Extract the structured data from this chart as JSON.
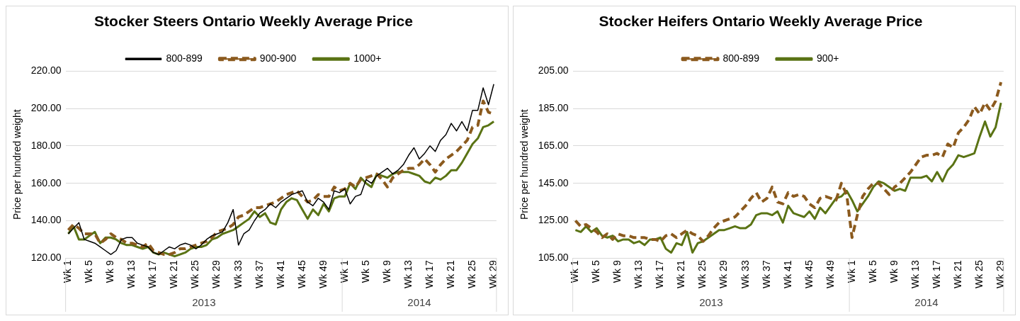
{
  "chart_data": [
    {
      "type": "line",
      "title": "Stocker Steers Ontario Weekly Average Price",
      "ylabel": "Price per hundred weight",
      "categories": [
        "Wk 1",
        null,
        null,
        null,
        "Wk 5",
        null,
        null,
        null,
        "Wk 9",
        null,
        null,
        null,
        "Wk 13",
        null,
        null,
        null,
        "Wk 17",
        null,
        null,
        null,
        "Wk 21",
        null,
        null,
        null,
        "Wk 25",
        null,
        null,
        null,
        "Wk 29",
        null,
        null,
        null,
        "Wk 33",
        null,
        null,
        null,
        "Wk 37",
        null,
        null,
        null,
        "Wk 41",
        null,
        null,
        null,
        "Wk 45",
        null,
        null,
        null,
        "Wk 49",
        null,
        null,
        null,
        "Wk 1",
        null,
        null,
        null,
        "Wk 5",
        null,
        null,
        null,
        "Wk 9",
        null,
        null,
        null,
        "Wk 13",
        null,
        null,
        null,
        "Wk 17",
        null,
        null,
        null,
        "Wk 21",
        null,
        null,
        null,
        "Wk 25",
        null,
        null,
        null,
        "Wk 29"
      ],
      "series": [
        {
          "name": "800-899",
          "color": "#000000",
          "line_style": "solid",
          "values": [
            133,
            136,
            139,
            130,
            129,
            128,
            126,
            124,
            122,
            124,
            130,
            131,
            131,
            128,
            127,
            126,
            123,
            122,
            124,
            126,
            125,
            127,
            128,
            127,
            125,
            127,
            130,
            132,
            133,
            134,
            139,
            146,
            127,
            133,
            135,
            140,
            144,
            146,
            149,
            147,
            150,
            152,
            154,
            155,
            156,
            150,
            148,
            152,
            150,
            146,
            156,
            155,
            157,
            149,
            153,
            154,
            162,
            160,
            164,
            166,
            168,
            165,
            167,
            170,
            175,
            179,
            173,
            176,
            180,
            177,
            183,
            186,
            192,
            188,
            193,
            188,
            199,
            199,
            211,
            202,
            213
          ]
        },
        {
          "name": "900-900",
          "color": "#8b5a1e",
          "line_style": "dashed",
          "values": [
            135,
            138,
            136,
            133,
            133,
            133,
            128,
            130,
            133,
            131,
            130,
            128,
            128,
            127,
            126,
            128,
            124,
            123,
            122,
            122,
            123,
            125,
            125,
            126,
            127,
            128,
            129,
            131,
            134,
            135,
            136,
            138,
            142,
            143,
            145,
            147,
            147,
            148,
            149,
            150,
            152,
            154,
            155,
            156,
            153,
            150,
            151,
            154,
            153,
            153,
            158,
            156,
            157,
            160,
            158,
            162,
            163,
            164,
            165,
            162,
            158,
            163,
            165,
            167,
            168,
            168,
            170,
            173,
            170,
            166,
            170,
            173,
            175,
            177,
            180,
            183,
            190,
            191,
            204,
            198,
            197
          ]
        },
        {
          "name": "1000+",
          "color": "#5a7314",
          "line_style": "solid",
          "values": [
            133,
            137,
            130,
            130,
            132,
            134,
            128,
            131,
            131,
            130,
            128,
            127,
            127,
            126,
            125,
            126,
            123,
            122,
            123,
            122,
            121,
            122,
            123,
            125,
            126,
            126,
            127,
            130,
            131,
            133,
            134,
            135,
            137,
            139,
            141,
            145,
            142,
            144,
            139,
            138,
            146,
            150,
            152,
            151,
            146,
            141,
            146,
            143,
            149,
            145,
            152,
            153,
            153,
            160,
            157,
            163,
            160,
            158,
            165,
            164,
            163,
            165,
            166,
            166,
            166,
            165,
            164,
            161,
            160,
            163,
            162,
            164,
            167,
            167,
            171,
            176,
            181,
            184,
            190,
            191,
            193
          ]
        }
      ],
      "ylim": [
        120,
        220
      ],
      "yticks": [
        {
          "value": 120,
          "label": "120.00"
        },
        {
          "value": 140,
          "label": "140.00"
        },
        {
          "value": 160,
          "label": "160.00"
        },
        {
          "value": 180,
          "label": "180.00"
        },
        {
          "value": 200,
          "label": "200.00"
        },
        {
          "value": 220,
          "label": "220.00"
        }
      ],
      "grid": "y",
      "legend": "top",
      "marker": "none",
      "annotations": [
        "2013",
        "2014"
      ]
    },
    {
      "type": "line",
      "title": "Stocker Heifers Ontario Weekly Average Price",
      "ylabel": "Price per hundred weight",
      "categories": [
        "Wk 1",
        null,
        null,
        null,
        "Wk 5",
        null,
        null,
        null,
        "Wk 9",
        null,
        null,
        null,
        "Wk 13",
        null,
        null,
        null,
        "Wk 17",
        null,
        null,
        null,
        "Wk 21",
        null,
        null,
        null,
        "Wk 25",
        null,
        null,
        null,
        "Wk 29",
        null,
        null,
        null,
        "Wk 33",
        null,
        null,
        null,
        "Wk 37",
        null,
        null,
        null,
        "Wk 41",
        null,
        null,
        null,
        "Wk 45",
        null,
        null,
        null,
        "Wk 49",
        null,
        null,
        null,
        "Wk 1",
        null,
        null,
        null,
        "Wk 5",
        null,
        null,
        null,
        "Wk 9",
        null,
        null,
        null,
        "Wk 13",
        null,
        null,
        null,
        "Wk 17",
        null,
        null,
        null,
        "Wk 21",
        null,
        null,
        null,
        "Wk 25",
        null,
        null,
        null,
        "Wk 29"
      ],
      "series": [
        {
          "name": "800-899",
          "color": "#8b5a1e",
          "line_style": "dashed",
          "values": [
            125,
            122,
            123,
            121,
            119,
            116,
            118,
            115,
            118,
            117,
            117,
            116,
            116,
            116,
            115,
            115,
            114,
            117,
            118,
            116,
            118,
            120,
            118,
            117,
            114,
            117,
            121,
            124,
            125,
            126,
            127,
            130,
            133,
            137,
            140,
            135,
            137,
            143,
            135,
            134,
            140,
            138,
            139,
            138,
            134,
            132,
            137,
            138,
            137,
            136,
            145,
            139,
            116,
            128,
            138,
            142,
            145,
            145,
            142,
            139,
            143,
            145,
            148,
            151,
            155,
            159,
            160,
            160,
            161,
            159,
            166,
            164,
            172,
            175,
            179,
            186,
            182,
            188,
            184,
            189,
            199
          ]
        },
        {
          "name": "900+",
          "color": "#5a7314",
          "line_style": "solid",
          "values": [
            120,
            119,
            122,
            119,
            121,
            117,
            116,
            117,
            114,
            115,
            115,
            113,
            114,
            112,
            115,
            115,
            116,
            110,
            108,
            113,
            112,
            119,
            108,
            113,
            114,
            116,
            118,
            120,
            120,
            121,
            122,
            121,
            121,
            123,
            128,
            129,
            129,
            128,
            130,
            124,
            133,
            129,
            128,
            127,
            130,
            126,
            132,
            129,
            133,
            137,
            138,
            141,
            136,
            130,
            134,
            138,
            143,
            146,
            145,
            143,
            141,
            142,
            141,
            148,
            148,
            148,
            149,
            146,
            151,
            146,
            152,
            155,
            160,
            159,
            160,
            161,
            170,
            178,
            170,
            175,
            188
          ]
        }
      ],
      "ylim": [
        105,
        205
      ],
      "yticks": [
        {
          "value": 105,
          "label": "105.00"
        },
        {
          "value": 125,
          "label": "125.00"
        },
        {
          "value": 145,
          "label": "145.00"
        },
        {
          "value": 165,
          "label": "165.00"
        },
        {
          "value": 185,
          "label": "185.00"
        },
        {
          "value": 205,
          "label": "205.00"
        }
      ],
      "grid": "y",
      "legend": "top",
      "marker": "none",
      "annotations": [
        "2013",
        "2014"
      ]
    }
  ]
}
